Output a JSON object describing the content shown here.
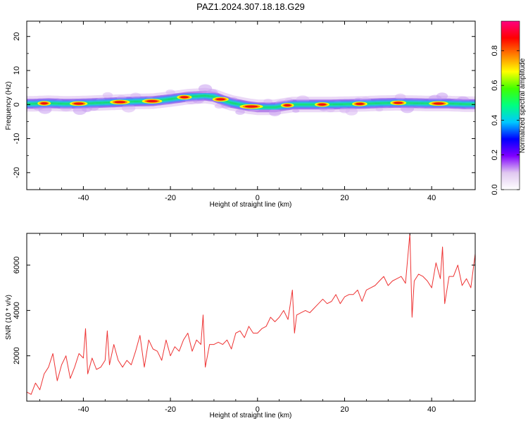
{
  "title": "PAZ1.2024.307.18.18.G29",
  "chart_data": [
    {
      "type": "heatmap",
      "xlabel": "Height of straight line (km)",
      "ylabel": "Frequency (Hz)",
      "xlim": [
        -53,
        50
      ],
      "ylim": [
        -25,
        24.5
      ],
      "x_ticks": [
        -40,
        -20,
        0,
        20,
        40
      ],
      "y_ticks": [
        20,
        10,
        0,
        -10,
        -20
      ],
      "x_tick_labels": [
        "-40",
        "-20",
        "0",
        "20",
        "40"
      ],
      "y_tick_labels": [
        "20",
        "10",
        "0",
        "-10",
        "-20"
      ],
      "grid": false,
      "frequency_ridge": {
        "x": [
          -52,
          -48,
          -44,
          -40,
          -36,
          -32,
          -28,
          -24,
          -20,
          -16,
          -12,
          -10,
          -8,
          -6,
          -4,
          -2,
          0,
          4,
          6,
          8,
          12,
          16,
          20,
          24,
          28,
          32,
          36,
          40,
          44,
          48,
          50
        ],
        "y": [
          0.2,
          0.4,
          0.2,
          0.3,
          0.5,
          0.7,
          0.9,
          1.0,
          1.6,
          2.3,
          2.6,
          2.3,
          1.3,
          0.5,
          0.0,
          -0.5,
          -0.8,
          -0.8,
          -0.4,
          0.0,
          0.0,
          0.0,
          0.1,
          0.2,
          0.4,
          0.5,
          0.4,
          0.3,
          0.3,
          0.1,
          0.1
        ]
      },
      "colorbar": {
        "label": "Normalized spectral amplitude",
        "range": [
          0.0,
          0.97
        ],
        "ticks": [
          0.0,
          0.2,
          0.4,
          0.6,
          0.8
        ],
        "tick_labels": [
          "0.0",
          "0.2",
          "0.4",
          "0.6",
          "0.8"
        ],
        "colors": [
          "#ffffff",
          "#e0c8f0",
          "#8000ff",
          "#0000ff",
          "#00c8ff",
          "#00ff80",
          "#40ff00",
          "#ffff00",
          "#ff8000",
          "#ff0000",
          "#ff0080"
        ]
      }
    },
    {
      "type": "line",
      "xlabel": "Height of straight line (km)",
      "ylabel": "SNR (10 * v/v)",
      "xlim": [
        -53,
        50
      ],
      "ylim": [
        0,
        7400
      ],
      "x_ticks": [
        -40,
        -20,
        0,
        20,
        40
      ],
      "y_ticks": [
        2000,
        4000,
        6000
      ],
      "x_tick_labels": [
        "-40",
        "-20",
        "0",
        "20",
        "40"
      ],
      "y_tick_labels": [
        "2000",
        "4000",
        "6000"
      ],
      "grid": false,
      "series": [
        {
          "color": "#ee3333",
          "x": [
            -53,
            -52,
            -51,
            -50,
            -49,
            -48,
            -47,
            -46,
            -45,
            -44,
            -43,
            -42,
            -41,
            -40,
            -39.5,
            -39,
            -38,
            -37,
            -36,
            -35,
            -34.5,
            -34,
            -33,
            -32,
            -31,
            -30,
            -29,
            -28,
            -27,
            -26,
            -25,
            -24,
            -23,
            -22,
            -21,
            -20,
            -19,
            -18,
            -17,
            -16,
            -15,
            -14,
            -13,
            -12.5,
            -12,
            -11,
            -10,
            -9,
            -8,
            -7,
            -6,
            -5,
            -4,
            -3,
            -2,
            -1,
            0,
            1,
            2,
            3,
            4,
            5,
            6,
            7,
            8,
            8.5,
            9,
            10,
            11,
            12,
            13,
            14,
            15,
            16,
            17,
            18,
            19,
            20,
            21,
            22,
            23,
            24,
            25,
            26,
            27,
            28,
            29,
            30,
            31,
            32,
            33,
            34,
            35,
            35.5,
            36,
            37,
            38,
            39,
            40,
            41,
            42,
            42.5,
            43,
            44,
            45,
            46,
            47,
            48,
            49,
            50
          ],
          "values": [
            400,
            300,
            800,
            500,
            1200,
            1500,
            2100,
            900,
            1600,
            2000,
            1000,
            1500,
            2100,
            1900,
            3200,
            1200,
            1900,
            1400,
            1500,
            1800,
            3100,
            1600,
            2500,
            1800,
            1500,
            1800,
            1600,
            2200,
            2900,
            1500,
            2700,
            2300,
            2200,
            1800,
            2700,
            2000,
            2400,
            2200,
            2700,
            3000,
            2200,
            2700,
            2500,
            3800,
            1500,
            2500,
            2500,
            2600,
            2500,
            2700,
            2300,
            3000,
            3100,
            2800,
            3300,
            3000,
            3000,
            3200,
            3300,
            3700,
            3500,
            3700,
            4000,
            3600,
            4900,
            3000,
            3800,
            3900,
            4000,
            3900,
            4100,
            4300,
            4500,
            4300,
            4400,
            4700,
            4300,
            4600,
            4700,
            4700,
            4900,
            4400,
            4900,
            5000,
            5100,
            5300,
            5500,
            5100,
            5300,
            5400,
            5500,
            5200,
            7400,
            3700,
            5300,
            5600,
            5500,
            5300,
            5000,
            6100,
            5400,
            6800,
            4300,
            5500,
            5500,
            6000,
            5100,
            5400,
            5000,
            6500
          ]
        }
      ]
    }
  ]
}
